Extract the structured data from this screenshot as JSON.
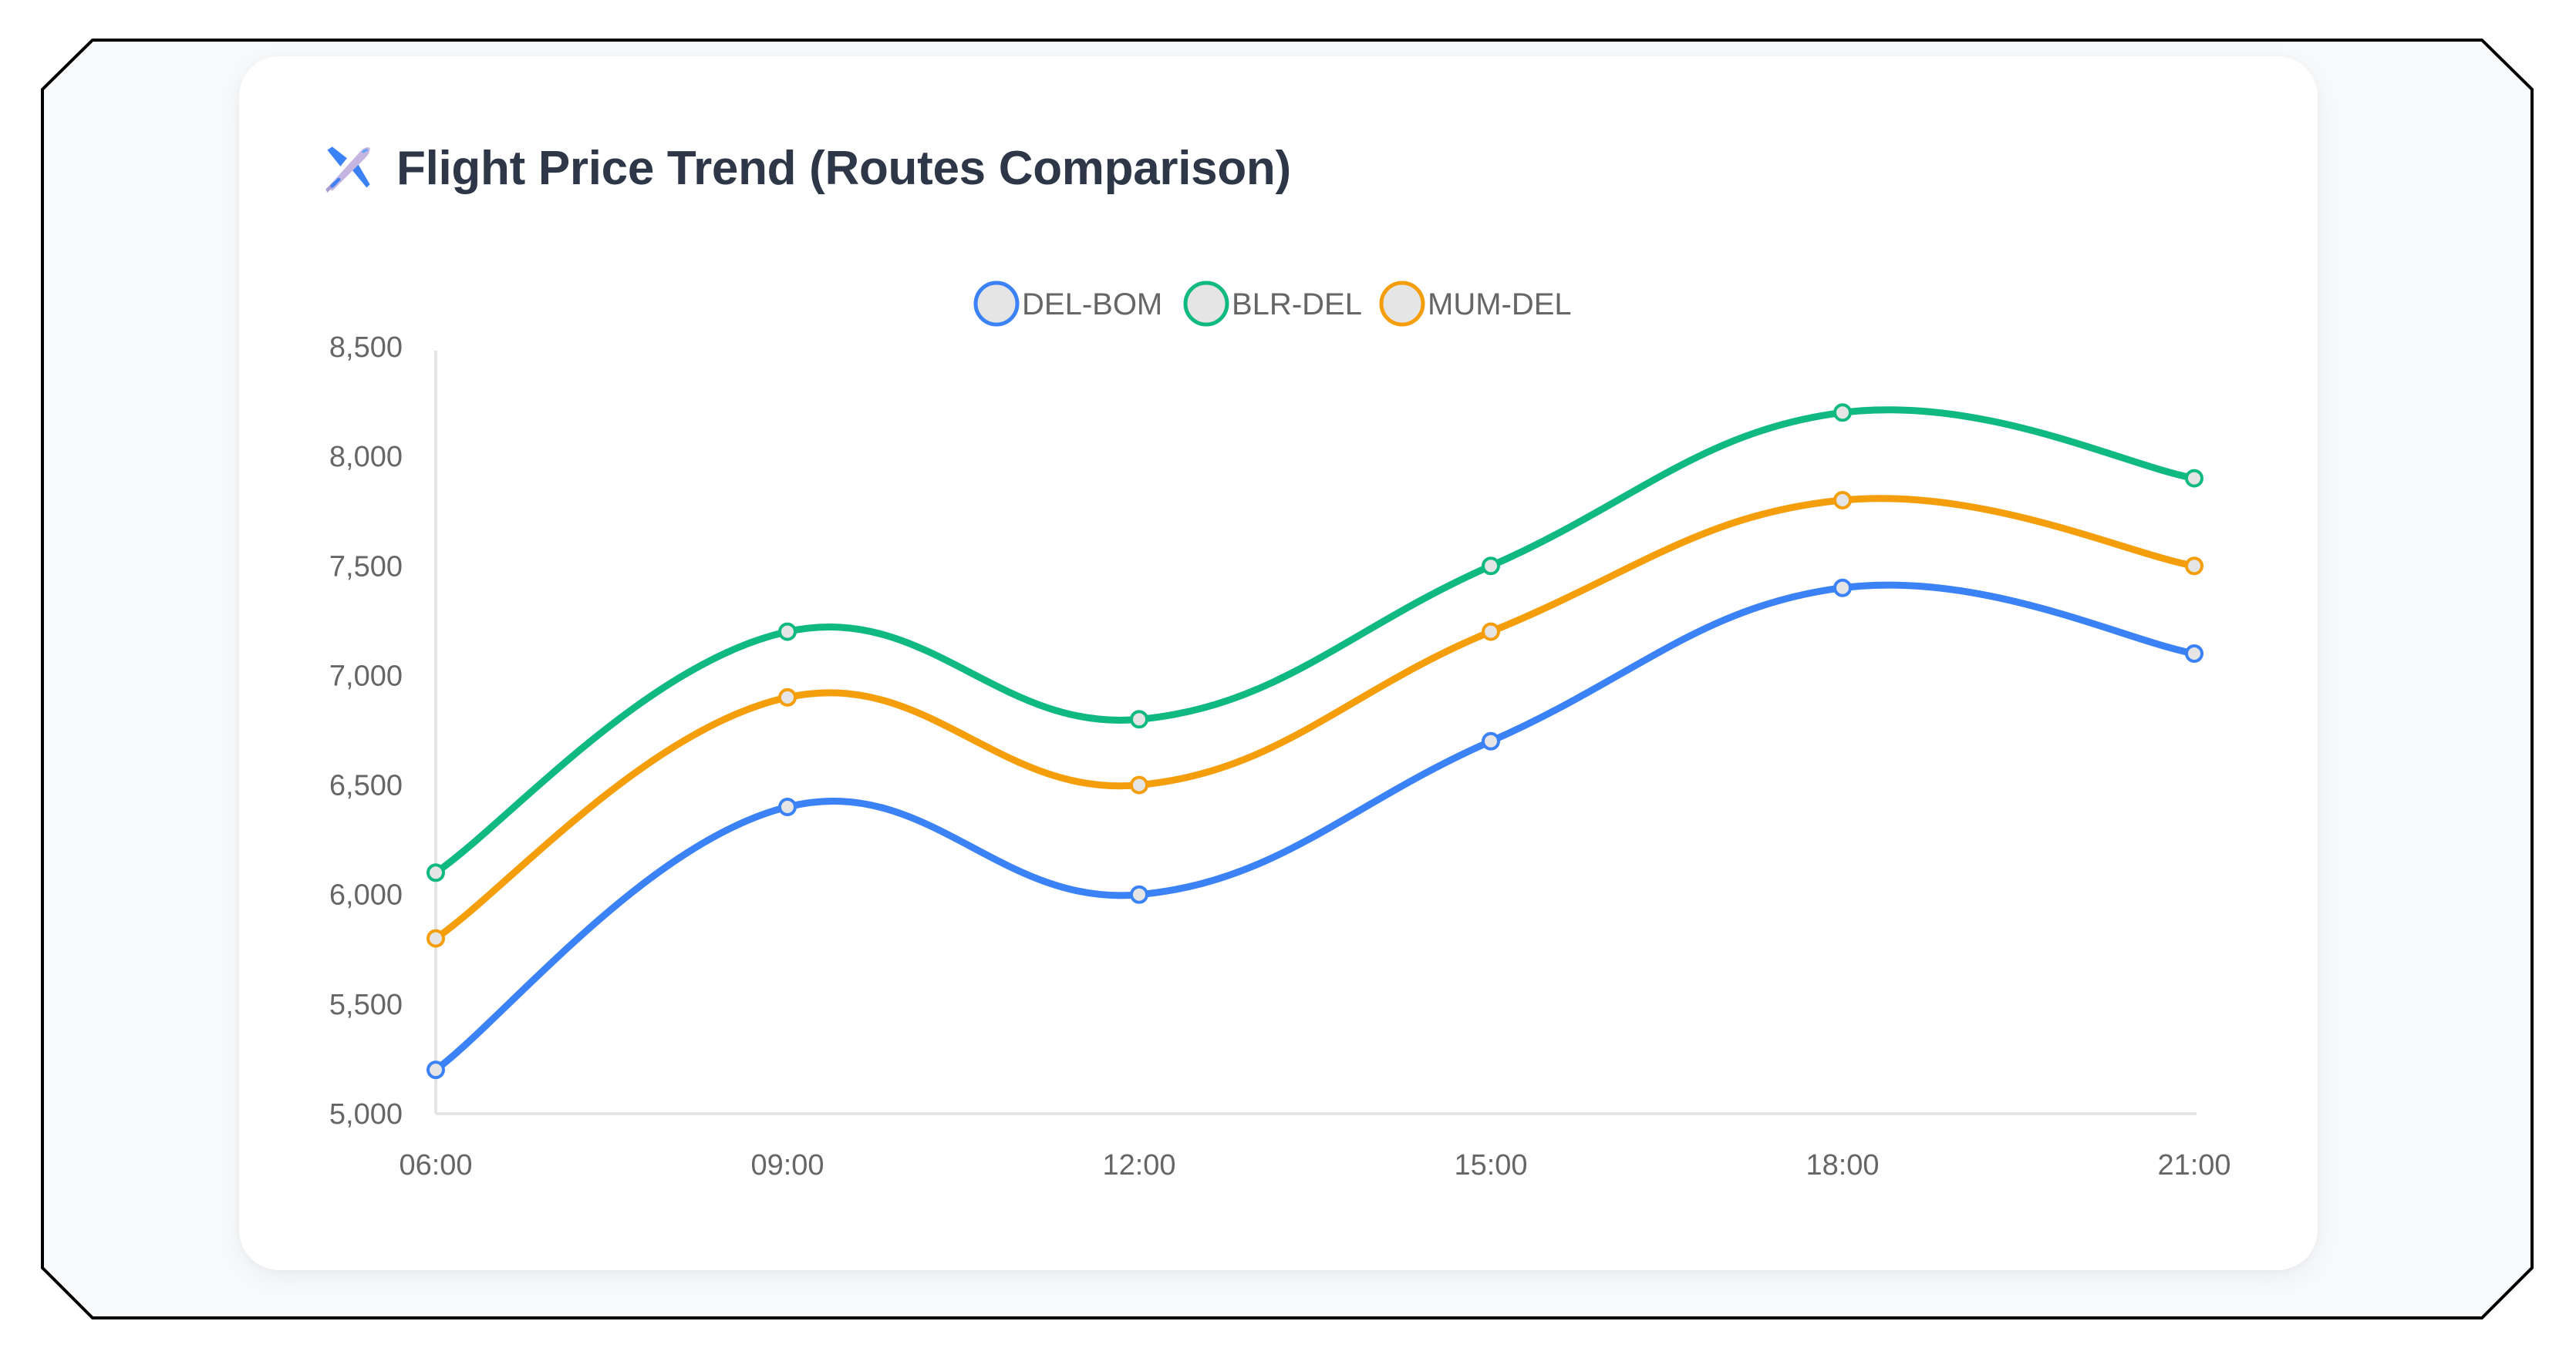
{
  "card": {
    "title": "Flight Price Trend (Routes Comparison)",
    "title_icon": "airplane-icon"
  },
  "colors": {
    "frame_bg": "#f8fafc",
    "frame_border": "#000000",
    "card_bg": "#ffffff",
    "title": "#2d3748",
    "axis": "#e5e5e5",
    "tick_text": "#666666",
    "marker_fill": "#e5e5e5"
  },
  "chart_data": {
    "type": "line",
    "title": "Flight Price Trend (Routes Comparison)",
    "xlabel": "",
    "ylabel": "",
    "categories": [
      "06:00",
      "09:00",
      "12:00",
      "15:00",
      "18:00",
      "21:00"
    ],
    "series": [
      {
        "name": "DEL-BOM",
        "color": "#3b82f6",
        "values": [
          5200,
          6400,
          6000,
          6700,
          7400,
          7100
        ]
      },
      {
        "name": "BLR-DEL",
        "color": "#10b981",
        "values": [
          6100,
          7200,
          6800,
          7500,
          8200,
          7900
        ]
      },
      {
        "name": "MUM-DEL",
        "color": "#f59e0b",
        "values": [
          5800,
          6900,
          6500,
          7200,
          7800,
          7500
        ]
      }
    ],
    "ylim": [
      5000,
      8500
    ],
    "yticks": [
      5000,
      5500,
      6000,
      6500,
      7000,
      7500,
      8000,
      8500
    ],
    "ytick_labels": [
      "5,000",
      "5,500",
      "6,000",
      "6,500",
      "7,000",
      "7,500",
      "8,000",
      "8,500"
    ],
    "grid": false,
    "smooth": true,
    "legend_position": "top"
  }
}
